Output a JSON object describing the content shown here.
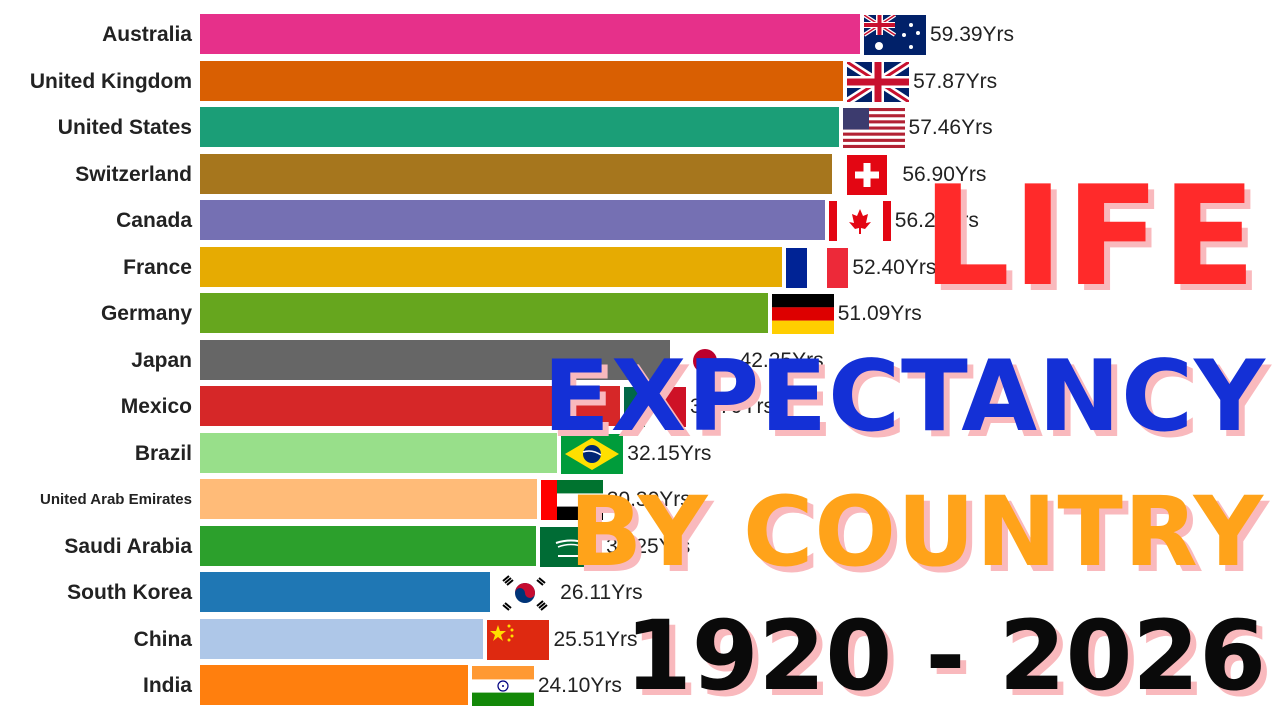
{
  "title": {
    "line1": "LIFE",
    "line2": "EXPECTANCY",
    "line3": "BY COUNTRY",
    "line4": "1920 - 2026"
  },
  "chart_data": {
    "type": "bar",
    "orientation": "horizontal",
    "value_suffix": "Yrs",
    "xlim": [
      0,
      60
    ],
    "grid": false,
    "legend": "none",
    "categories": [
      "Australia",
      "United Kingdom",
      "United States",
      "Switzerland",
      "Canada",
      "France",
      "Germany",
      "Japan",
      "Mexico",
      "Brazil",
      "United Arab Emirates",
      "Saudi Arabia",
      "South Korea",
      "China",
      "India"
    ],
    "values": [
      59.39,
      57.87,
      57.46,
      56.9,
      56.22,
      52.4,
      51.09,
      42.25,
      37.79,
      32.15,
      30.3,
      30.25,
      26.11,
      25.51,
      24.1
    ],
    "value_labels": [
      "59.39Yrs",
      "57.87Yrs",
      "57.46Yrs",
      "56.90Yrs",
      "56.22Yrs",
      "52.40Yrs",
      "51.09Yrs",
      "42.25Yrs",
      "37.79Yrs",
      "32.15Yrs",
      "30.30Yrs",
      "30.25Yrs",
      "26.11Yrs",
      "25.51Yrs",
      "24.10Yrs"
    ],
    "colors": [
      "#e6308a",
      "#d95f02",
      "#1b9e77",
      "#a6761d",
      "#7570b3",
      "#e6ab02",
      "#66a61e",
      "#666666",
      "#d62728",
      "#98df8a",
      "#ffbb78",
      "#2ca02c",
      "#1f77b4",
      "#aec7e8",
      "#ff7f0e"
    ],
    "flags": [
      "australia-flag",
      "uk-flag",
      "us-flag",
      "switzerland-flag",
      "canada-flag",
      "france-flag",
      "germany-flag",
      "japan-flag",
      "mexico-flag",
      "brazil-flag",
      "uae-flag",
      "saudi-arabia-flag",
      "south-korea-flag",
      "china-flag",
      "india-flag"
    ]
  }
}
